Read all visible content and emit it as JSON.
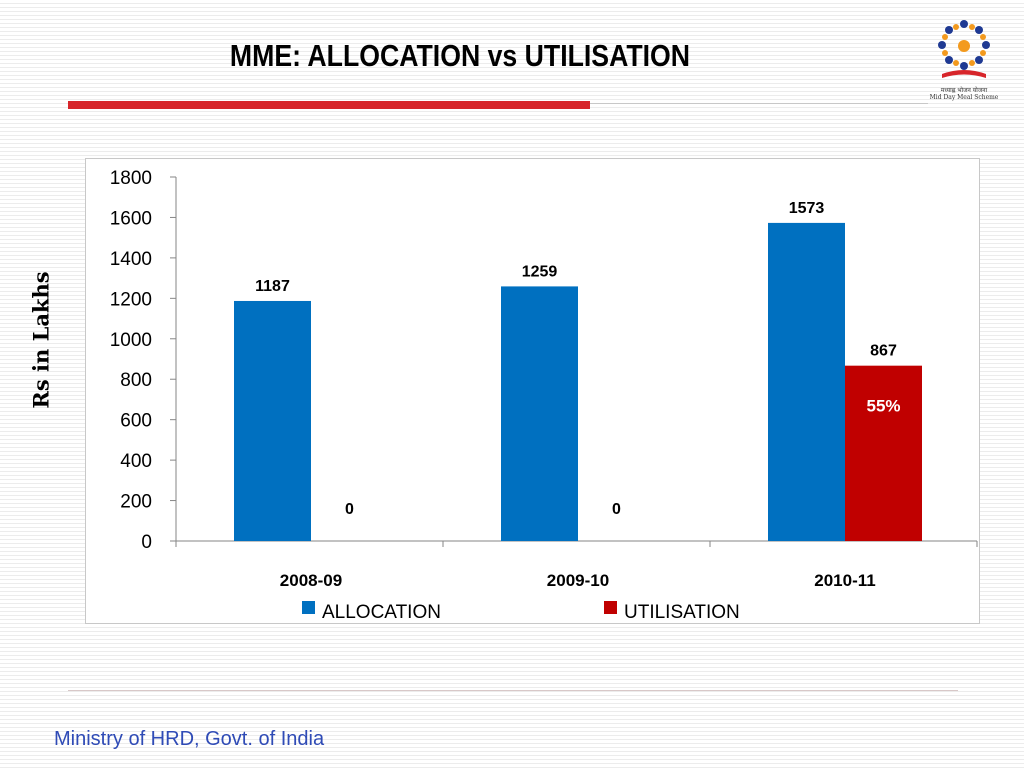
{
  "slide": {
    "title": "MME: ALLOCATION vs UTILISATION",
    "footer": "Ministry of HRD, Govt. of India",
    "logo": {
      "icon": "mid-day-meal-logo",
      "text_line1": "मध्याह्न भोजन योजना",
      "text_line2": "Mid Day Meal Scheme"
    }
  },
  "chart_data": {
    "type": "bar",
    "title": "",
    "xlabel": "",
    "ylabel": "Rs in Lakhs",
    "categories": [
      "2008-09",
      "2009-10",
      "2010-11"
    ],
    "ylim": [
      0,
      1800
    ],
    "yticks": [
      0,
      200,
      400,
      600,
      800,
      1000,
      1200,
      1400,
      1600,
      1800
    ],
    "series": [
      {
        "name": "ALLOCATION",
        "color": "#0070c0",
        "values": [
          1187,
          1259,
          1573
        ]
      },
      {
        "name": "UTILISATION",
        "color": "#c00000",
        "values": [
          0,
          0,
          867
        ]
      }
    ],
    "annotations": [
      {
        "text": "55%",
        "series": "UTILISATION",
        "category": "2010-11",
        "color": "#ffffff"
      }
    ],
    "legend": "bottom",
    "grid": false
  }
}
